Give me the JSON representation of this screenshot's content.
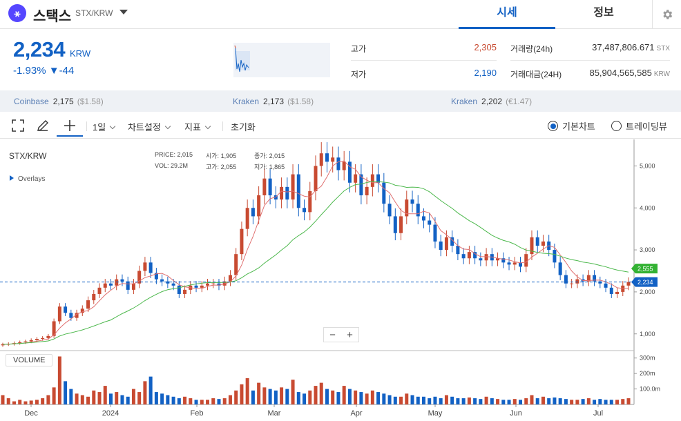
{
  "header": {
    "coin_logo": "⚹",
    "coin_name": "스택스",
    "pair": "STX/KRW",
    "tabs": [
      {
        "label": "시세",
        "active": true
      },
      {
        "label": "정보",
        "active": false
      }
    ],
    "settings_icon": "gear-icon"
  },
  "price": {
    "current": "2,234",
    "unit": "KRW",
    "change_pct": "-1.93%",
    "change_arrow": "▼",
    "change_abs": "-44"
  },
  "stats": {
    "high_label": "고가",
    "high": "2,305",
    "low_label": "저가",
    "low": "2,190",
    "vol_label": "거래량(24h)",
    "vol": "37,487,806.671",
    "vol_unit": "STX",
    "amt_label": "거래대금(24H)",
    "amt": "85,904,565,585",
    "amt_unit": "KRW"
  },
  "exchanges": [
    {
      "name": "Coinbase",
      "price": "2,175",
      "sub": "($1.58)"
    },
    {
      "name": "Kraken",
      "price": "2,173",
      "sub": "($1.58)"
    },
    {
      "name": "Kraken",
      "price": "2,202",
      "sub": "(€1.47)"
    }
  ],
  "toolbar": {
    "interval": "1일",
    "chart_settings": "차트설정",
    "indicators": "지표",
    "reset": "초기화",
    "radio_basic": "기본차트",
    "radio_tv": "트레이딩뷰"
  },
  "chart_labels": {
    "pair": "STX/KRW",
    "overlays": "Overlays",
    "price_lbl": "PRICE:",
    "price_val": "2,015",
    "open_lbl": "시가:",
    "open_val": "1,905",
    "close_lbl": "종가:",
    "close_val": "2,015",
    "vol_lbl": "VOL:",
    "vol_val": "29.2M",
    "high_lbl": "고가:",
    "high_val": "2,055",
    "low_lbl": "저가:",
    "low_val": "1,865",
    "volume": "VOLUME",
    "zoom_minus": "−",
    "zoom_plus": "+"
  },
  "colors": {
    "up": "#c84a31",
    "down": "#1261c4",
    "ma_short": "#e07070",
    "ma_long": "#4cb84c",
    "accent": "#1261c4",
    "badge_green": "#33b233"
  },
  "chart_data": {
    "type": "candlestick",
    "y_ticks": [
      "5,000",
      "4,000",
      "3,000",
      "2,000",
      "1,000"
    ],
    "volume_ticks": [
      "300m",
      "200m",
      "100.0m"
    ],
    "x_ticks": [
      "Dec",
      "2024",
      "Feb",
      "Mar",
      "Apr",
      "May",
      "Jun",
      "Jul"
    ],
    "last_price_badge": "2,234",
    "ma_badge": "2,555",
    "ylim": [
      700,
      5500
    ],
    "close_path": [
      750,
      760,
      780,
      800,
      820,
      850,
      880,
      900,
      950,
      1300,
      1650,
      1500,
      1380,
      1500,
      1600,
      1800,
      1950,
      2100,
      2200,
      2150,
      2300,
      2250,
      2050,
      2200,
      2500,
      2700,
      2450,
      2300,
      2250,
      2200,
      2150,
      1950,
      2050,
      2150,
      2100,
      2150,
      2200,
      2200,
      2150,
      2250,
      2400,
      2900,
      3500,
      4000,
      3800,
      4300,
      4700,
      4300,
      4200,
      4500,
      4200,
      4800,
      4000,
      3900,
      4400,
      5000,
      5300,
      5100,
      5200,
      4900,
      5100,
      4600,
      4800,
      4300,
      4500,
      4800,
      4600,
      4100,
      3800,
      3400,
      3800,
      4200,
      4100,
      3800,
      3700,
      3600,
      3200,
      3000,
      3300,
      3100,
      2900,
      2800,
      2950,
      2800,
      2750,
      2900,
      2750,
      2800,
      2700,
      2650,
      2700,
      2600,
      2900,
      3300,
      3100,
      3200,
      3000,
      2700,
      2400,
      2200,
      2200,
      2300,
      2250,
      2400,
      2250,
      2200,
      2100,
      1950,
      2000,
      2150,
      2234
    ],
    "volume_path": [
      60,
      40,
      20,
      30,
      20,
      25,
      30,
      40,
      60,
      110,
      310,
      150,
      100,
      70,
      60,
      50,
      90,
      80,
      120,
      70,
      80,
      60,
      50,
      100,
      80,
      150,
      180,
      80,
      70,
      60,
      50,
      40,
      50,
      40,
      30,
      30,
      30,
      40,
      35,
      40,
      60,
      90,
      130,
      170,
      90,
      140,
      110,
      100,
      90,
      110,
      100,
      160,
      80,
      70,
      90,
      120,
      140,
      100,
      90,
      80,
      120,
      100,
      90,
      80,
      70,
      90,
      80,
      70,
      60,
      50,
      50,
      70,
      60,
      50,
      50,
      40,
      50,
      40,
      60,
      50,
      40,
      40,
      45,
      40,
      35,
      50,
      40,
      35,
      30,
      30,
      35,
      30,
      40,
      60,
      40,
      50,
      40,
      45,
      40,
      35,
      30,
      30,
      35,
      40,
      30,
      35,
      30,
      30,
      30,
      35,
      40
    ]
  }
}
